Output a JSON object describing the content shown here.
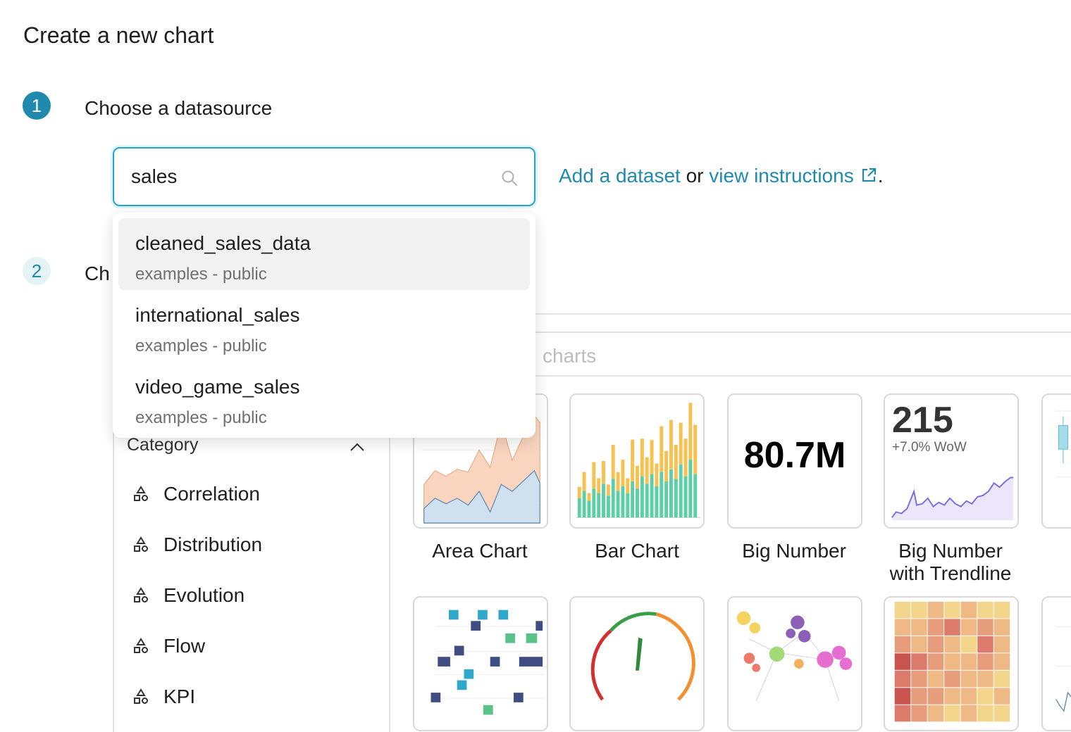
{
  "page": {
    "title": "Create a new chart"
  },
  "steps": [
    {
      "number": "1",
      "label": "Choose a datasource"
    },
    {
      "number": "2",
      "label": "Ch"
    }
  ],
  "datasource_search": {
    "value": "sales"
  },
  "helper": {
    "add_dataset": "Add a dataset",
    "or": " or ",
    "view_instructions": "view instructions",
    "period": "."
  },
  "dropdown": {
    "options": [
      {
        "name": "cleaned_sales_data",
        "schema": "examples - public"
      },
      {
        "name": "international_sales",
        "schema": "examples - public"
      },
      {
        "name": "video_game_sales",
        "schema": "examples - public"
      }
    ]
  },
  "gallery": {
    "search_placeholder_visible": "charts",
    "category_header": "Category",
    "categories": [
      "Correlation",
      "Distribution",
      "Evolution",
      "Flow",
      "KPI"
    ],
    "charts": [
      {
        "label": "Area Chart"
      },
      {
        "label": "Bar Chart"
      },
      {
        "label": "Big Number",
        "value": "80.7M"
      },
      {
        "label": "Big Number\nwith Trendline",
        "value": "215",
        "sub": "+7.0% WoW"
      }
    ]
  },
  "colors": {
    "accent": "#1f8aad",
    "focus_border": "#20a7c9"
  },
  "icons": [
    "search-icon",
    "external-link-icon",
    "chevron-up-icon",
    "category-shapes-icon"
  ]
}
